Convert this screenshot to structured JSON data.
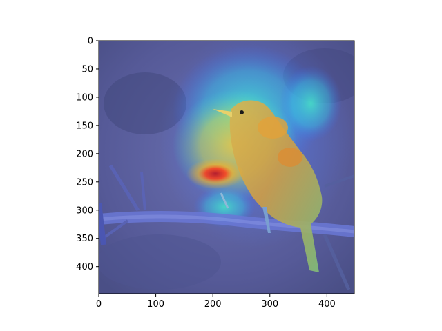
{
  "figure": {
    "description_free": true,
    "x_axis": {
      "ticks": [
        "0",
        "100",
        "200",
        "300",
        "400"
      ],
      "range": [
        0,
        448
      ]
    },
    "y_axis": {
      "ticks": [
        "0",
        "50",
        "100",
        "150",
        "200",
        "250",
        "300",
        "350",
        "400"
      ],
      "range": [
        0,
        448
      ],
      "inverted": true
    },
    "colors": {
      "background_wash": "#5a5f9e",
      "overlay_warm": "#ff3b1a",
      "overlay_cyan": "#39e3d8",
      "overlay_yellow": "#f3e04a"
    }
  },
  "image": {
    "subject_icon": "bird-icon",
    "heatmap": "jet-colormap-overlay"
  }
}
